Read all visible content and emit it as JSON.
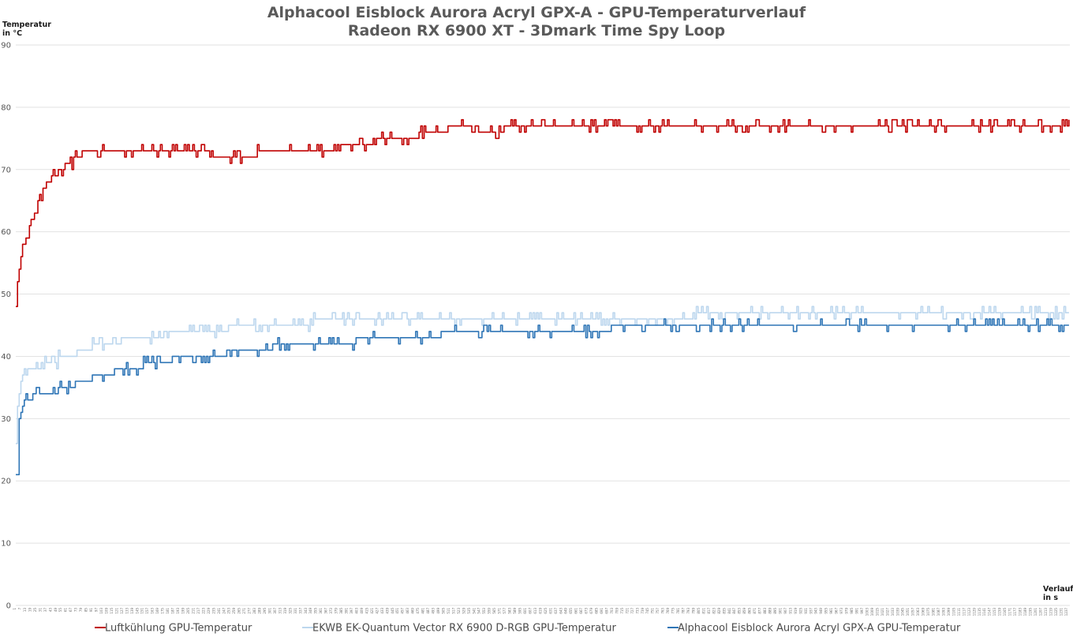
{
  "chart_data": {
    "type": "line",
    "title": "Alphacool Eisblock Aurora Acryl GPX-A - GPU-Temperaturverlauf",
    "subtitle": "Radeon RX 6900 XT - 3Dmark Time Spy Loop",
    "ylabel": [
      "Temperatur",
      "in °C"
    ],
    "xlabel": [
      "Verlauf",
      "in s"
    ],
    "ylim": [
      0,
      90
    ],
    "yticks": [
      0,
      10,
      20,
      30,
      40,
      50,
      60,
      70,
      80,
      90
    ],
    "xlim": [
      1,
      1240
    ],
    "xtick_step": 6,
    "grid": true,
    "legend_position": "bottom",
    "series": [
      {
        "name": "Luftkühlung GPU-Temperatur",
        "color": "#c00000",
        "x": [
          1,
          3,
          6,
          10,
          15,
          20,
          25,
          30,
          35,
          40,
          45,
          50,
          55,
          60,
          65,
          70,
          75,
          80,
          100,
          150,
          200,
          250,
          270,
          300,
          350,
          400,
          450,
          500,
          520,
          550,
          600,
          650,
          700,
          800,
          900,
          1000,
          1100,
          1200,
          1240
        ],
        "values": [
          48,
          52,
          55,
          58,
          60,
          62,
          64,
          66,
          67,
          68,
          69,
          70,
          70,
          71,
          71,
          72,
          72,
          73,
          73,
          73,
          73,
          72,
          72,
          73,
          73,
          74,
          75,
          76,
          77,
          76,
          77,
          77,
          77,
          77,
          77,
          77,
          77,
          77,
          77
        ]
      },
      {
        "name": "EKWB EK-Quantum Vector RX 6900 D-RGB GPU-Temperatur",
        "color": "#bdd7ee",
        "x": [
          1,
          3,
          6,
          10,
          20,
          30,
          50,
          80,
          100,
          150,
          200,
          250,
          300,
          350,
          400,
          450,
          500,
          600,
          700,
          800,
          900,
          1000,
          1100,
          1200,
          1240
        ],
        "values": [
          26,
          32,
          35,
          37,
          38,
          38.5,
          39.5,
          41,
          42,
          43,
          44,
          44.5,
          45,
          45.5,
          45.5,
          46,
          46,
          46,
          46,
          46.5,
          47,
          47,
          47,
          47,
          47
        ]
      },
      {
        "name": "Alphacool Eisblock Aurora Acryl GPX-A GPU-Temperatur",
        "color": "#2e75b6",
        "x": [
          1,
          3,
          5,
          8,
          12,
          20,
          40,
          70,
          100,
          150,
          200,
          250,
          300,
          350,
          400,
          450,
          500,
          600,
          700,
          800,
          900,
          1000,
          1100,
          1200,
          1240
        ],
        "values": [
          21,
          21,
          30,
          32,
          33,
          33.5,
          34,
          35.5,
          37,
          38.5,
          40,
          40.5,
          41.5,
          42,
          42.5,
          43,
          43.5,
          44,
          44.5,
          44.5,
          45,
          45,
          45,
          45,
          45
        ]
      }
    ]
  }
}
